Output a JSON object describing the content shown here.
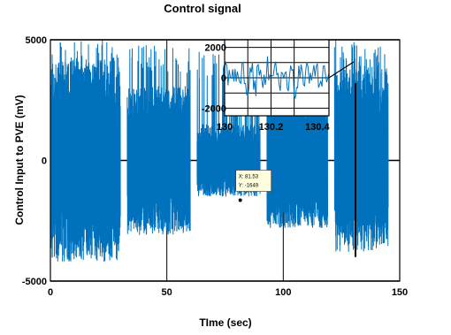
{
  "chart_data": [
    {
      "type": "line",
      "title": "Control signal",
      "xlabel": "TIme (sec)",
      "ylabel": "Control Input to PVE (mV)",
      "xlim": [
        0,
        150
      ],
      "ylim": [
        -5000,
        5000
      ],
      "xticks": [
        "0",
        "50",
        "100",
        "150"
      ],
      "yticks": [
        "5000",
        "0",
        "-5000"
      ],
      "grid": true,
      "color": "#0072bd",
      "segments": [
        {
          "start": 0,
          "end": 30,
          "amplitude": 4200,
          "peak": 5000
        },
        {
          "start": 33,
          "end": 60,
          "amplitude": 3100,
          "peak": 4800
        },
        {
          "start": 63,
          "end": 90,
          "amplitude": 1500,
          "peak": 4500
        },
        {
          "start": 93,
          "end": 119,
          "amplitude": 2800,
          "peak": 5000
        },
        {
          "start": 122,
          "end": 145,
          "amplitude": 3800,
          "peak": 5000
        }
      ],
      "datatip": {
        "x_label": "X: 81.53",
        "y_label": "Y: -1649",
        "x": 81.53,
        "y": -1649
      },
      "marker_x": 131
    },
    {
      "type": "line",
      "title": "",
      "xlim": [
        130,
        130.45
      ],
      "ylim": [
        -2500,
        2500
      ],
      "xticks": [
        "130",
        "130.2",
        "130.4"
      ],
      "yticks": [
        "2000",
        "0",
        "-2000"
      ],
      "grid": true,
      "color": "#0072bd"
    }
  ]
}
